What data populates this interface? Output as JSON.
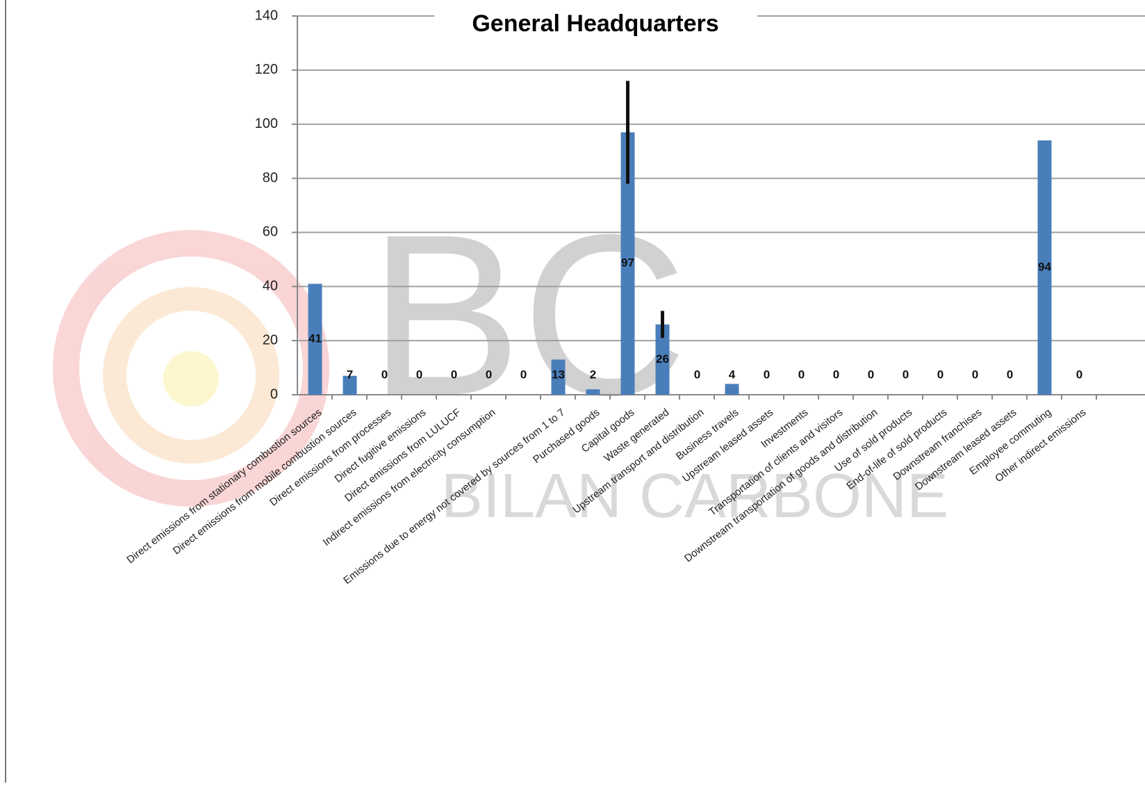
{
  "chart_data": {
    "type": "bar",
    "title": "General Headquarters",
    "watermark": "BC",
    "watermark_subtitle": "BILAN CARBONE",
    "categories": [
      "Direct emissions from stationary combustion sources",
      "Direct emissions from mobile combustion sources",
      "Direct emissions from processes",
      "Direct fugitive emissions",
      "Direct emissions from LULUCF",
      "Indirect emissions from electricity consumption",
      null,
      "Emissions due to energy not covered by sources from 1 to 7",
      "Purchased goods",
      "Capital goods",
      "Waste generated",
      "Upstream transport and distribution",
      "Business travels",
      "Upstream leased assets",
      "Investments",
      "Transportation of clients and visitors",
      "Downstream transportation of goods and distribution",
      "Use of sold products",
      "End-of-life of sold products",
      "Downstream franchises",
      "Downstream leased assets",
      "Employee commuting",
      "Other indirect emissions"
    ],
    "values": [
      41,
      7,
      0,
      0,
      0,
      0,
      0,
      13,
      2,
      97,
      26,
      0,
      4,
      0,
      0,
      0,
      0,
      0,
      0,
      0,
      0,
      94,
      0
    ],
    "errors": [
      null,
      null,
      null,
      null,
      null,
      null,
      null,
      null,
      null,
      19,
      5,
      null,
      null,
      null,
      null,
      null,
      null,
      null,
      null,
      null,
      null,
      null,
      null
    ],
    "color": "#4a7ebb",
    "ylim": [
      0,
      140
    ],
    "yticks": [
      0,
      20,
      40,
      60,
      80,
      100,
      120,
      140
    ],
    "grid": true
  }
}
